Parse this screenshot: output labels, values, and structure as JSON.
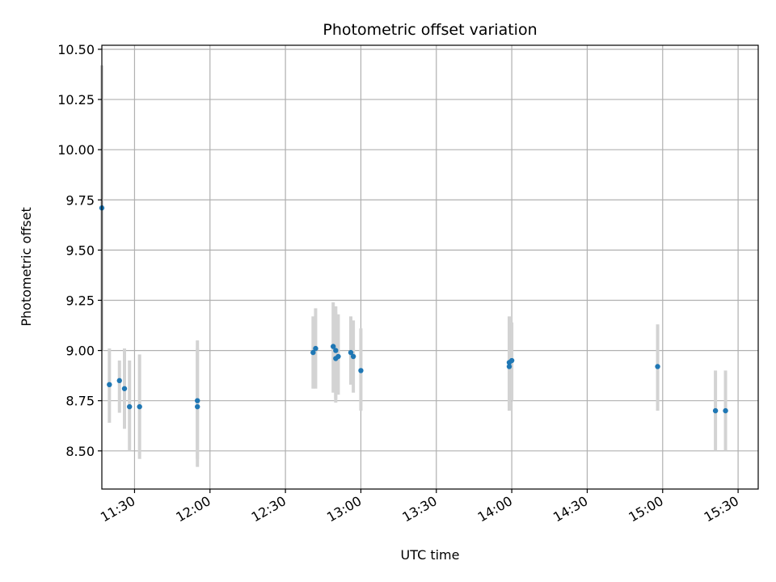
{
  "chart_data": {
    "type": "scatter",
    "title": "Photometric offset variation",
    "xlabel": "UTC time",
    "ylabel": "Photometric offset",
    "x_ticks": [
      "11:30",
      "12:00",
      "12:30",
      "13:00",
      "13:30",
      "14:00",
      "14:30",
      "15:00",
      "15:30"
    ],
    "y_ticks": [
      "8.50",
      "8.75",
      "9.00",
      "9.25",
      "9.50",
      "9.75",
      "10.00",
      "10.25",
      "10.50"
    ],
    "xlim": [
      "11:17",
      "15:38"
    ],
    "ylim": [
      8.31,
      10.52
    ],
    "grid": true,
    "legend": "none",
    "colors": {
      "points": "#1f77b4",
      "errorbars": "#d3d3d3",
      "grid": "#b0b0b0"
    },
    "points": [
      {
        "time": "11:17",
        "value": 9.71,
        "err_low": 9.0,
        "err_high": 10.42
      },
      {
        "time": "11:20",
        "value": 8.83,
        "err_low": 8.64,
        "err_high": 9.01
      },
      {
        "time": "11:24",
        "value": 8.85,
        "err_low": 8.69,
        "err_high": 8.95
      },
      {
        "time": "11:26",
        "value": 8.81,
        "err_low": 8.61,
        "err_high": 9.01
      },
      {
        "time": "11:28",
        "value": 8.72,
        "err_low": 8.5,
        "err_high": 8.95
      },
      {
        "time": "11:32",
        "value": 8.72,
        "err_low": 8.46,
        "err_high": 8.98
      },
      {
        "time": "11:55",
        "value": 8.75,
        "err_low": 8.46,
        "err_high": 9.01
      },
      {
        "time": "11:55",
        "value": 8.72,
        "err_low": 8.42,
        "err_high": 9.05
      },
      {
        "time": "12:41",
        "value": 8.99,
        "err_low": 8.81,
        "err_high": 9.17
      },
      {
        "time": "12:42",
        "value": 9.01,
        "err_low": 8.81,
        "err_high": 9.21
      },
      {
        "time": "12:49",
        "value": 9.02,
        "err_low": 8.79,
        "err_high": 9.24
      },
      {
        "time": "12:50",
        "value": 9.0,
        "err_low": 8.74,
        "err_high": 9.22
      },
      {
        "time": "12:50",
        "value": 8.96,
        "err_low": 8.76,
        "err_high": 9.19
      },
      {
        "time": "12:51",
        "value": 8.97,
        "err_low": 8.78,
        "err_high": 9.18
      },
      {
        "time": "12:56",
        "value": 8.99,
        "err_low": 8.83,
        "err_high": 9.17
      },
      {
        "time": "12:57",
        "value": 8.97,
        "err_low": 8.79,
        "err_high": 9.15
      },
      {
        "time": "13:00",
        "value": 8.9,
        "err_low": 8.7,
        "err_high": 9.11
      },
      {
        "time": "13:59",
        "value": 8.94,
        "err_low": 8.7,
        "err_high": 9.17
      },
      {
        "time": "13:59",
        "value": 8.92,
        "err_low": 8.72,
        "err_high": 9.12
      },
      {
        "time": "14:00",
        "value": 8.95,
        "err_low": 8.75,
        "err_high": 9.14
      },
      {
        "time": "14:58",
        "value": 8.92,
        "err_low": 8.7,
        "err_high": 9.13
      },
      {
        "time": "15:21",
        "value": 8.7,
        "err_low": 8.5,
        "err_high": 8.9
      },
      {
        "time": "15:25",
        "value": 8.7,
        "err_low": 8.5,
        "err_high": 8.9
      }
    ]
  }
}
